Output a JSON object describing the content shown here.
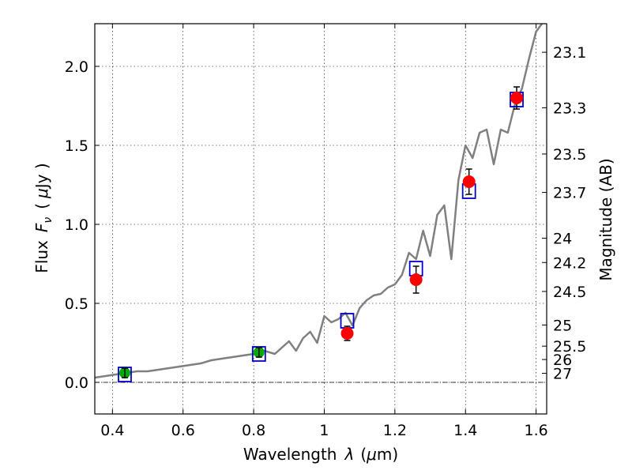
{
  "chart_data": {
    "type": "scatter",
    "title": "",
    "xlabel": "Wavelength",
    "xlabel_symbol": "λ",
    "xlabel_unit_open": "(",
    "xlabel_unit_symbol": "μ",
    "xlabel_unit": "m)",
    "ylabel_prefix": "Flux",
    "ylabel_symbol": "F",
    "ylabel_subscript": "ν",
    "ylabel_unit_open": "(",
    "ylabel_unit_symbol": "μ",
    "ylabel_unit": "Jy )",
    "y2label": "Magnitude (AB)",
    "xlim": [
      0.35,
      1.63
    ],
    "ylim": [
      -0.2,
      2.27
    ],
    "grid": true,
    "xticks": [
      {
        "value": 0.4,
        "label": "0.4"
      },
      {
        "value": 0.6,
        "label": "0.6"
      },
      {
        "value": 0.8,
        "label": "0.8"
      },
      {
        "value": 1.0,
        "label": "1"
      },
      {
        "value": 1.2,
        "label": "1.2"
      },
      {
        "value": 1.4,
        "label": "1.4"
      },
      {
        "value": 1.6,
        "label": "1.6"
      }
    ],
    "yticks": [
      {
        "value": 0.0,
        "label": "0.0"
      },
      {
        "value": 0.5,
        "label": "0.5"
      },
      {
        "value": 1.0,
        "label": "1.0"
      },
      {
        "value": 1.5,
        "label": "1.5"
      },
      {
        "value": 2.0,
        "label": "2.0"
      }
    ],
    "y2ticks": [
      {
        "value": 23.1,
        "label": "23.1"
      },
      {
        "value": 23.3,
        "label": "23.3"
      },
      {
        "value": 23.5,
        "label": "23.5"
      },
      {
        "value": 23.7,
        "label": "23.7"
      },
      {
        "value": 24,
        "label": "24"
      },
      {
        "value": 24.2,
        "label": "24.2"
      },
      {
        "value": 24.5,
        "label": "24.5"
      },
      {
        "value": 25,
        "label": "25"
      },
      {
        "value": 25.5,
        "label": "25.5"
      },
      {
        "value": 26,
        "label": "26"
      },
      {
        "value": 27,
        "label": "27"
      }
    ],
    "model_spectrum": {
      "color": "#808080",
      "x": [
        0.35,
        0.38,
        0.41,
        0.44,
        0.47,
        0.5,
        0.53,
        0.56,
        0.59,
        0.62,
        0.65,
        0.68,
        0.71,
        0.74,
        0.77,
        0.8,
        0.83,
        0.86,
        0.88,
        0.9,
        0.92,
        0.94,
        0.96,
        0.98,
        1.0,
        1.02,
        1.04,
        1.06,
        1.08,
        1.1,
        1.12,
        1.14,
        1.16,
        1.18,
        1.2,
        1.22,
        1.24,
        1.26,
        1.28,
        1.3,
        1.32,
        1.34,
        1.36,
        1.38,
        1.4,
        1.42,
        1.44,
        1.46,
        1.48,
        1.5,
        1.52,
        1.54,
        1.56,
        1.58,
        1.6,
        1.62
      ],
      "y": [
        0.03,
        0.04,
        0.05,
        0.06,
        0.07,
        0.07,
        0.08,
        0.09,
        0.1,
        0.11,
        0.12,
        0.14,
        0.15,
        0.16,
        0.17,
        0.18,
        0.2,
        0.18,
        0.22,
        0.26,
        0.2,
        0.28,
        0.32,
        0.25,
        0.42,
        0.38,
        0.4,
        0.44,
        0.36,
        0.47,
        0.52,
        0.55,
        0.56,
        0.6,
        0.62,
        0.68,
        0.82,
        0.78,
        0.96,
        0.8,
        1.06,
        1.12,
        0.78,
        1.28,
        1.5,
        1.42,
        1.58,
        1.6,
        1.38,
        1.6,
        1.58,
        1.76,
        1.86,
        2.05,
        2.22,
        2.28
      ]
    },
    "model_points": {
      "color": "#0000cc",
      "x": [
        0.435,
        0.815,
        1.065,
        1.26,
        1.41,
        1.545
      ],
      "y": [
        0.05,
        0.18,
        0.39,
        0.72,
        1.21,
        1.79
      ]
    },
    "detections": {
      "color": "#ff0000",
      "x": [
        1.065,
        1.26,
        1.41,
        1.545
      ],
      "y": [
        0.31,
        0.65,
        1.27,
        1.8
      ],
      "err": [
        0.045,
        0.085,
        0.08,
        0.07
      ]
    },
    "optical_points": {
      "color": "#00aa00",
      "x": [
        0.435,
        0.815
      ],
      "y": [
        0.06,
        0.19
      ],
      "err": [
        0.03,
        0.03
      ]
    }
  }
}
